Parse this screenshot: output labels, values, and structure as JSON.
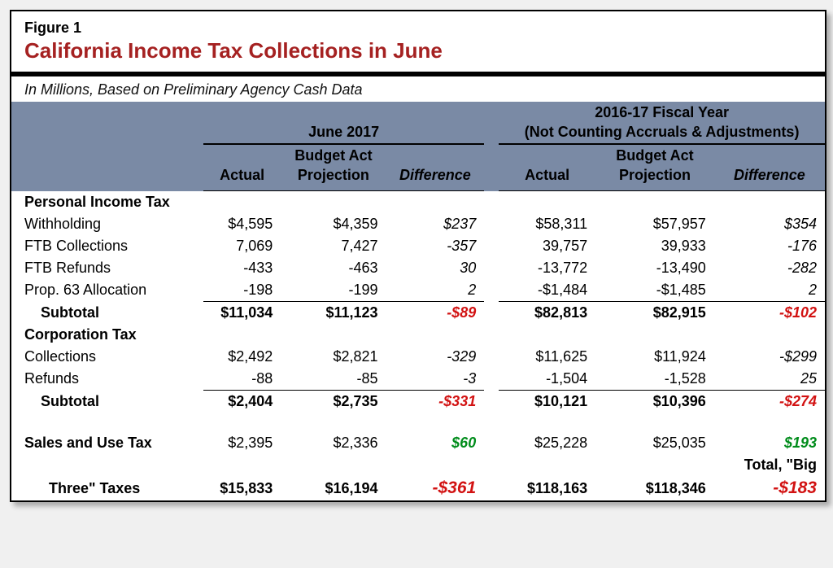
{
  "figure_num": "Figure 1",
  "title": "California Income Tax Collections in June",
  "subtitle": "In Millions, Based on Preliminary Agency Cash Data",
  "colors": {
    "title": "#a52121",
    "header_bg": "#7a8aa5",
    "negative_diff": "#d21212",
    "positive_diff": "#008c1b"
  },
  "groups": {
    "left": {
      "title": "June 2017",
      "subtitle": ""
    },
    "right": {
      "title": "2016-17 Fiscal Year",
      "subtitle": "(Not Counting Accruals & Adjustments)"
    }
  },
  "column_heads": {
    "actual": "Actual",
    "projection_line1": "Budget Act",
    "projection_line2": "Projection",
    "difference": "Difference"
  },
  "sections": [
    {
      "name": "Personal Income Tax",
      "rows": [
        {
          "label": "Withholding",
          "l": {
            "actual": "$4,595",
            "proj": "$4,359",
            "diff": "$237",
            "diff_style": "italic"
          },
          "r": {
            "actual": "$58,311",
            "proj": "$57,957",
            "diff": "$354",
            "diff_style": "italic"
          }
        },
        {
          "label": "FTB Collections",
          "l": {
            "actual": "7,069",
            "proj": "7,427",
            "diff": "-357",
            "diff_style": "italic"
          },
          "r": {
            "actual": "39,757",
            "proj": "39,933",
            "diff": "-176",
            "diff_style": "italic"
          }
        },
        {
          "label": "FTB Refunds",
          "l": {
            "actual": "-433",
            "proj": "-463",
            "diff": "30",
            "diff_style": "italic"
          },
          "r": {
            "actual": "-13,772",
            "proj": "-13,490",
            "diff": "-282",
            "diff_style": "italic"
          }
        },
        {
          "label": "Prop. 63 Allocation",
          "l": {
            "actual": "-198",
            "proj": "-199",
            "diff": "2",
            "diff_style": "italic"
          },
          "r": {
            "actual": "-$1,484",
            "proj": "-$1,485",
            "diff": "2",
            "diff_style": "italic"
          },
          "underline": true
        }
      ],
      "subtotal": {
        "label": "Subtotal",
        "l": {
          "actual": "$11,034",
          "proj": "$11,123",
          "diff": "-$89",
          "diff_style": "red"
        },
        "r": {
          "actual": "$82,813",
          "proj": "$82,915",
          "diff": "-$102",
          "diff_style": "red"
        }
      }
    },
    {
      "name": "Corporation Tax",
      "rows": [
        {
          "label": "Collections",
          "l": {
            "actual": "$2,492",
            "proj": "$2,821",
            "diff": "-329",
            "diff_style": "italic"
          },
          "r": {
            "actual": "$11,625",
            "proj": "$11,924",
            "diff": "-$299",
            "diff_style": "italic"
          }
        },
        {
          "label": "Refunds",
          "l": {
            "actual": "-88",
            "proj": "-85",
            "diff": "-3",
            "diff_style": "italic"
          },
          "r": {
            "actual": "-1,504",
            "proj": "-1,528",
            "diff": "25",
            "diff_style": "italic"
          },
          "underline": true
        }
      ],
      "subtotal": {
        "label": "Subtotal",
        "l": {
          "actual": "$2,404",
          "proj": "$2,735",
          "diff": "-$331",
          "diff_style": "red"
        },
        "r": {
          "actual": "$10,121",
          "proj": "$10,396",
          "diff": "-$274",
          "diff_style": "red"
        }
      }
    }
  ],
  "standalone_row": {
    "label": "Sales and Use Tax",
    "l": {
      "actual": "$2,395",
      "proj": "$2,336",
      "diff": "$60",
      "diff_style": "green"
    },
    "r": {
      "actual": "$25,228",
      "proj": "$25,035",
      "diff": "$193",
      "diff_style": "green"
    }
  },
  "total": {
    "label_line1": "Total, \"Big",
    "label_line2": "Three\" Taxes",
    "l": {
      "actual": "$15,833",
      "proj": "$16,194",
      "diff": "-$361",
      "diff_style": "red"
    },
    "r": {
      "actual": "$118,163",
      "proj": "$118,346",
      "diff": "-$183",
      "diff_style": "red"
    }
  }
}
